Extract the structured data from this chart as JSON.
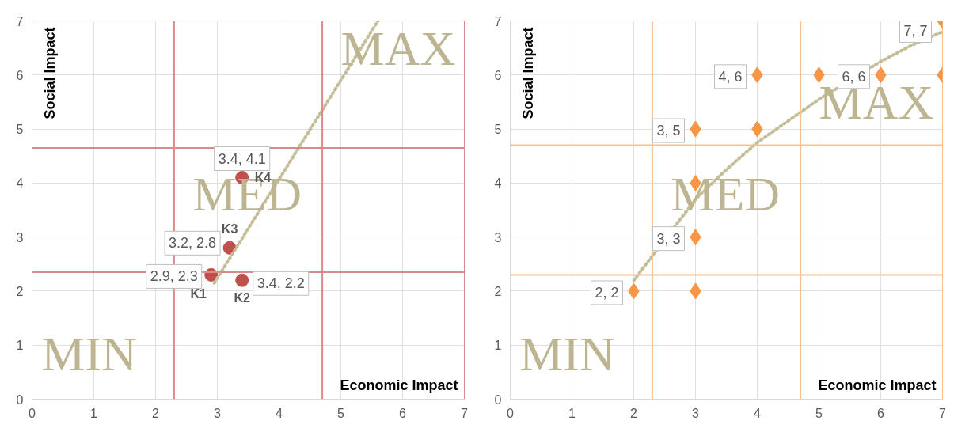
{
  "chart_data": [
    {
      "type": "scatter",
      "xlabel": "Economic Impact",
      "ylabel": "Social Impact",
      "xlim": [
        0,
        7
      ],
      "ylim": [
        0,
        7
      ],
      "xticks": [
        0,
        1,
        2,
        3,
        4,
        5,
        6,
        7
      ],
      "yticks": [
        0,
        1,
        2,
        3,
        4,
        5,
        6,
        7
      ],
      "grid": true,
      "marker": "circle",
      "series": [
        {
          "color": "#c0504d",
          "x": [
            2.9,
            3.4,
            3.2,
            3.4
          ],
          "values": [
            2.3,
            2.2,
            2.8,
            4.1
          ],
          "value_labels": [
            "2.9, 2.3",
            "3.4, 2.2",
            "3.2, 2.8",
            "3.4, 4.1"
          ]
        },
        {
          "type": "line",
          "marker": "none",
          "color": "#c4bd97",
          "line_style": "dotted",
          "x": [
            2.95,
            5.6
          ],
          "values": [
            2.15,
            7.0
          ]
        }
      ],
      "ref_lines": [
        {
          "axis": "x",
          "value": 2.3,
          "color": "#d98b8b"
        },
        {
          "axis": "x",
          "value": 4.7,
          "color": "#d98b8b"
        },
        {
          "axis": "y",
          "value": 2.35,
          "color": "#d98b8b"
        },
        {
          "axis": "y",
          "value": 4.65,
          "color": "#d98b8b"
        }
      ],
      "annotations": [
        "MIN",
        "MED",
        "MAX",
        {
          "text": "K1",
          "x": 2.9,
          "y": 2.3
        },
        {
          "text": "K2",
          "x": 3.4,
          "y": 2.2
        },
        {
          "text": "K3",
          "x": 3.2,
          "y": 2.8
        },
        {
          "text": "K4",
          "x": 3.4,
          "y": 4.1
        }
      ]
    },
    {
      "type": "scatter",
      "xlabel": "Economic Impact",
      "ylabel": "Social Impact",
      "xlim": [
        0,
        7
      ],
      "ylim": [
        0,
        7
      ],
      "xticks": [
        0,
        1,
        2,
        3,
        4,
        5,
        6,
        7
      ],
      "yticks": [
        0,
        1,
        2,
        3,
        4,
        5,
        6,
        7
      ],
      "grid": true,
      "marker": "diamond",
      "series": [
        {
          "color": "#f79646",
          "x": [
            2,
            3,
            3,
            3,
            3,
            4,
            4,
            5,
            6,
            7,
            7
          ],
          "values": [
            2,
            2,
            3,
            4,
            5,
            5,
            6,
            6,
            6,
            6,
            7
          ],
          "value_labels": [
            "2, 2",
            null,
            "3, 3",
            null,
            "3, 5",
            null,
            "4, 6",
            null,
            "6, 6",
            null,
            "7, 7"
          ]
        },
        {
          "type": "line",
          "marker": "none",
          "color": "#c4bd97",
          "line_style": "dotted",
          "x": [
            2,
            3,
            3.5,
            4,
            4.5,
            5,
            6,
            6.5,
            7
          ],
          "values": [
            2.2,
            3.7,
            4.25,
            4.75,
            5.15,
            5.55,
            6.25,
            6.55,
            6.8
          ]
        }
      ],
      "ref_lines": [
        {
          "axis": "x",
          "value": 2.3,
          "color": "#fabf8f"
        },
        {
          "axis": "x",
          "value": 4.7,
          "color": "#fabf8f"
        },
        {
          "axis": "y",
          "value": 2.3,
          "color": "#fabf8f"
        },
        {
          "axis": "y",
          "value": 4.7,
          "color": "#fabf8f"
        }
      ],
      "annotations": [
        "MIN",
        "MED",
        "MAX"
      ]
    }
  ]
}
